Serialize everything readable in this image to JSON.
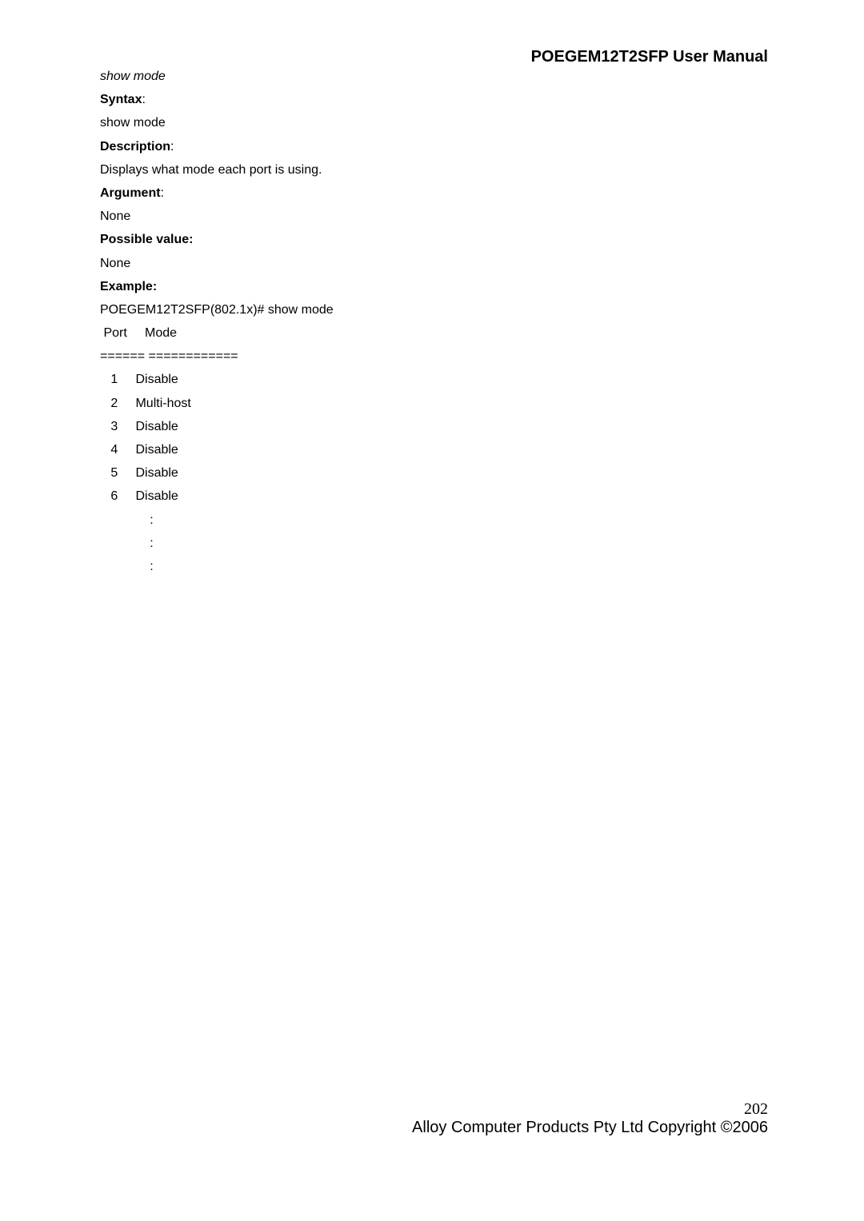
{
  "header": {
    "title": "POEGEM12T2SFP User Manual"
  },
  "sections": {
    "command_name": "show mode",
    "syntax_label": "Syntax",
    "syntax_body": "show mode",
    "description_label": "Description",
    "description_body": "Displays what mode each port is using.",
    "argument_label": "Argument",
    "argument_body": "None",
    "possible_label": "Possible value:",
    "possible_body": "None",
    "example_label": "Example:",
    "example_cmd": "POEGEM12T2SFP(802.1x)# show mode",
    "table_header": " Port     Mode",
    "table_sep": "====== ============",
    "rows": [
      "   1     Disable",
      "   2     Multi-host",
      "   3     Disable",
      "   4     Disable",
      "   5     Disable",
      "   6     Disable",
      "              :",
      "              :",
      "              :"
    ]
  },
  "footer": {
    "page_number": "202",
    "copyright": "Alloy Computer Products Pty Ltd Copyright ©2006"
  }
}
